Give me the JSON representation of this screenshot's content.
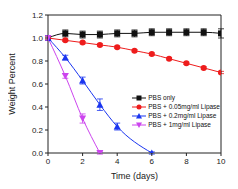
{
  "chart_data": {
    "type": "line",
    "x_label": "Time (days)",
    "y_label": "Weight Percent",
    "x": [
      0,
      1,
      2,
      3,
      4,
      5,
      6,
      7,
      8,
      9,
      10
    ],
    "xlim": [
      0,
      10
    ],
    "xticks": [
      0,
      2,
      4,
      6,
      8,
      10
    ],
    "ylim": [
      0,
      1.2
    ],
    "yticks": [
      {
        "value": 0,
        "label": "0.0"
      },
      {
        "value": 0.2,
        "label": "0.2"
      },
      {
        "value": 0.4,
        "label": "0.4"
      },
      {
        "value": 0.6,
        "label": "0.6"
      },
      {
        "value": 0.8,
        "label": "0.8"
      },
      {
        "value": 1,
        "label": "1.0"
      },
      {
        "value": 1.2,
        "label": "1.2"
      }
    ],
    "legend": "lower right",
    "series": [
      {
        "name": "PBS only",
        "color": "#111111",
        "marker": "square",
        "values": [
          1.0,
          1.04,
          1.03,
          1.03,
          1.04,
          1.04,
          1.05,
          1.05,
          1.05,
          1.05,
          1.04
        ],
        "errors": [
          0.02,
          0.03,
          0.03,
          0.03,
          0.03,
          0.03,
          0.03,
          0.03,
          0.03,
          0.03,
          0.04
        ]
      },
      {
        "name": "PBS + 0.05mg/ml Lipase",
        "color": "#ee1c1c",
        "marker": "circle",
        "values": [
          1.0,
          0.98,
          0.96,
          0.94,
          0.92,
          0.89,
          0.86,
          0.82,
          0.78,
          0.74,
          0.7
        ],
        "errors": [
          0.01,
          0.01,
          0.01,
          0.01,
          0.01,
          0.01,
          0.01,
          0.01,
          0.01,
          0.01,
          0.01
        ]
      },
      {
        "name": "PBS + 0.2mg/ml Lipase",
        "color": "#1a35f0",
        "marker": "triangle",
        "values": [
          1.0,
          0.83,
          0.63,
          0.42,
          0.23,
          null,
          0.0,
          null,
          null,
          null,
          null
        ],
        "errors": [
          0.02,
          0.02,
          0.03,
          0.05,
          0.03,
          null,
          0.01,
          null,
          null,
          null,
          null
        ]
      },
      {
        "name": "PBS + 1mg/ml Lipase",
        "color": "#cc44ee",
        "marker": "triangle-down",
        "values": [
          1.0,
          0.67,
          0.3,
          0.0,
          null,
          null,
          null,
          null,
          null,
          null,
          null
        ],
        "errors": [
          0.02,
          0.02,
          0.04,
          0.01,
          null,
          null,
          null,
          null,
          null,
          null,
          null
        ]
      }
    ]
  }
}
